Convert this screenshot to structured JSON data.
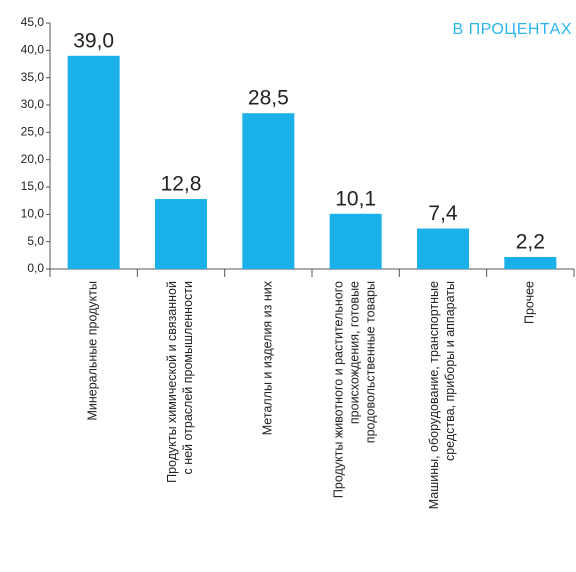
{
  "chart_data": {
    "type": "bar",
    "title": "В ПРОЦЕНТАХ",
    "categories": [
      [
        "Минеральные продукты"
      ],
      [
        "Продукты химической и связанной",
        "с ней отраслей промышленности"
      ],
      [
        "Металлы и изделия из них"
      ],
      [
        "Продукты животного и растительного",
        "происхождения, готовые",
        "продовольственные товары"
      ],
      [
        "Машины, оборудование, транспортные",
        "средства, приборы и аппараты"
      ],
      [
        "Прочее"
      ]
    ],
    "values": [
      39.0,
      12.8,
      28.5,
      10.1,
      7.4,
      2.2
    ],
    "value_labels": [
      "39,0",
      "12,8",
      "28,5",
      "10,1",
      "7,4",
      "2,2"
    ],
    "color": "#1ab0ea",
    "ylim": [
      0,
      45
    ],
    "yticks": [
      {
        "value": 0,
        "label": "0,0"
      },
      {
        "value": 5,
        "label": "5,0"
      },
      {
        "value": 10,
        "label": "10,0"
      },
      {
        "value": 15,
        "label": "15,0"
      },
      {
        "value": 20,
        "label": "20,0"
      },
      {
        "value": 25,
        "label": "25,0"
      },
      {
        "value": 30,
        "label": "30,0"
      },
      {
        "value": 35,
        "label": "35,0"
      },
      {
        "value": 40,
        "label": "40,0"
      },
      {
        "value": 45,
        "label": "45,0"
      }
    ],
    "grid": false
  }
}
